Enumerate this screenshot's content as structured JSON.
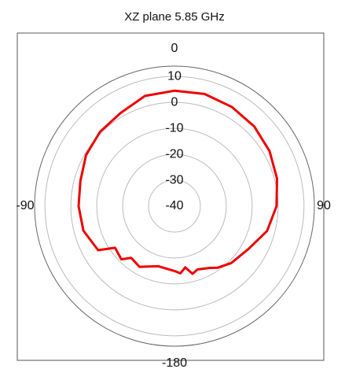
{
  "chart_data": {
    "type": "polar",
    "title": "XZ plane 5.85 GHz",
    "theta": [
      -180,
      -165,
      -150,
      -140,
      -135,
      -125,
      -120,
      -105,
      -90,
      -75,
      -60,
      -45,
      -30,
      -15,
      0,
      15,
      30,
      45,
      60,
      75,
      90,
      105,
      120,
      135,
      145,
      150,
      160,
      165,
      170,
      175,
      180
    ],
    "values": [
      -15,
      -16,
      -13,
      -14,
      -11,
      -12,
      -6,
      -3.6,
      -3,
      -2.4,
      -0.6,
      0.6,
      1.5,
      4,
      4.5,
      4.8,
      4.2,
      3.5,
      2.4,
      1,
      -0.6,
      -3,
      -7,
      -9,
      -11,
      -12.5,
      -14,
      -13,
      -16,
      -14,
      -15
    ],
    "color": "#ee0000",
    "rlim": [
      -40,
      14
    ],
    "rticks": [
      10,
      0,
      -10,
      -20,
      -30,
      -40
    ],
    "thetaticks": [
      0,
      90,
      -180,
      -90
    ],
    "grid": true
  }
}
